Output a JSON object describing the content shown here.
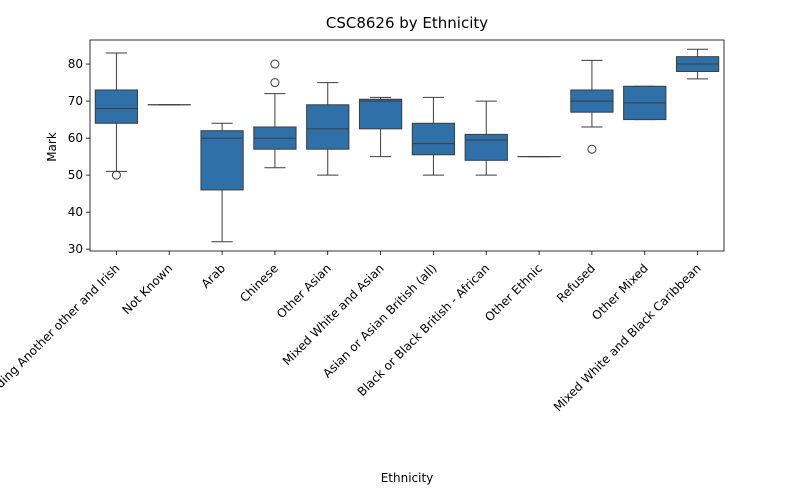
{
  "chart_data": {
    "type": "box",
    "title": "CSC8626 by Ethnicity",
    "xlabel": "Ethnicity",
    "ylabel": "Mark",
    "ylim": [
      29.5,
      86.5
    ],
    "yticks": [
      30,
      40,
      50,
      60,
      70,
      80
    ],
    "box_color": "#2f70a8",
    "categories": [
      "White including Another other and Irish",
      "Not Known",
      "Arab",
      "Chinese",
      "Other Asian",
      "Mixed White and Asian",
      "Asian or Asian British (all)",
      "Black or Black British - African",
      "Other Ethnic",
      "Refused",
      "Other Mixed",
      "Mixed White and Black Caribbean"
    ],
    "boxes": [
      {
        "whisker_low": 51,
        "q1": 64,
        "median": 68,
        "q3": 73,
        "whisker_high": 83,
        "outliers": [
          50
        ]
      },
      {
        "whisker_low": 69,
        "q1": 69,
        "median": 69,
        "q3": 69,
        "whisker_high": 69,
        "outliers": []
      },
      {
        "whisker_low": 32,
        "q1": 46,
        "median": 60,
        "q3": 62,
        "whisker_high": 64,
        "outliers": []
      },
      {
        "whisker_low": 52,
        "q1": 57,
        "median": 60,
        "q3": 63,
        "whisker_high": 72,
        "outliers": [
          75,
          80
        ]
      },
      {
        "whisker_low": 50,
        "q1": 57,
        "median": 62.5,
        "q3": 69,
        "whisker_high": 75,
        "outliers": []
      },
      {
        "whisker_low": 55,
        "q1": 62.5,
        "median": 70,
        "q3": 70.5,
        "whisker_high": 71,
        "outliers": []
      },
      {
        "whisker_low": 50,
        "q1": 55.5,
        "median": 58.5,
        "q3": 64,
        "whisker_high": 71,
        "outliers": []
      },
      {
        "whisker_low": 50,
        "q1": 54,
        "median": 59.5,
        "q3": 61,
        "whisker_high": 70,
        "outliers": []
      },
      {
        "whisker_low": 55,
        "q1": 55,
        "median": 55,
        "q3": 55,
        "whisker_high": 55,
        "outliers": []
      },
      {
        "whisker_low": 63,
        "q1": 67,
        "median": 70,
        "q3": 73,
        "whisker_high": 81,
        "outliers": [
          57
        ]
      },
      {
        "whisker_low": 65,
        "q1": 65,
        "median": 69.5,
        "q3": 74,
        "whisker_high": 74,
        "outliers": []
      },
      {
        "whisker_low": 76,
        "q1": 78,
        "median": 80,
        "q3": 82,
        "whisker_high": 84,
        "outliers": []
      }
    ]
  }
}
